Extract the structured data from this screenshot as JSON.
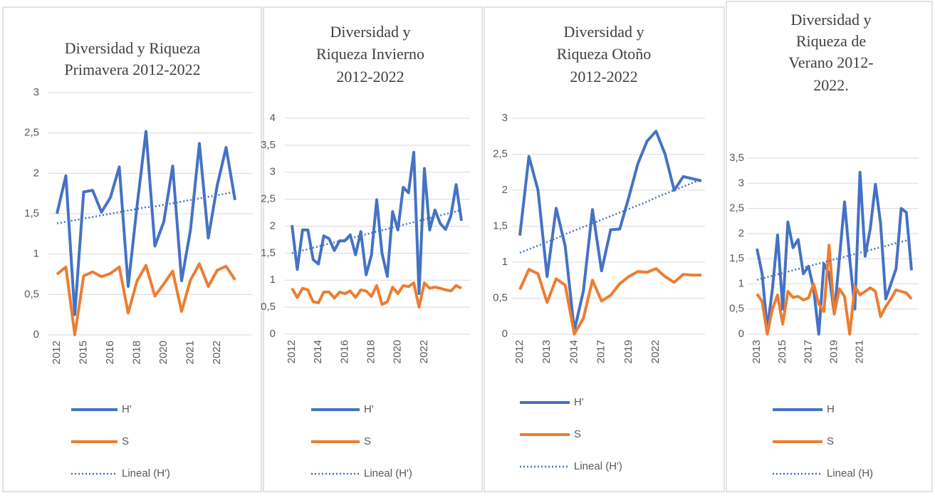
{
  "chart_data": [
    {
      "type": "line",
      "title": [
        "Diversidad y Riqueza",
        "Primavera 2012-2022"
      ],
      "categories": [
        "2012",
        null,
        null,
        "2015",
        null,
        null,
        "2016",
        null,
        null,
        "2018",
        null,
        null,
        "2020",
        null,
        null,
        "2021",
        null,
        null,
        "2022",
        null,
        null
      ],
      "ylim": [
        0,
        3
      ],
      "yticks": [
        0,
        {
          "value": 0.5,
          "label": "0,5"
        },
        1,
        {
          "value": 1.5,
          "label": "1,5"
        },
        2,
        {
          "value": 2.5,
          "label": "2,5"
        },
        3
      ],
      "grid": true,
      "series": [
        {
          "name": "H'",
          "color": "#4472c4",
          "values": [
            1.5,
            1.97,
            0.25,
            1.77,
            1.79,
            1.52,
            1.7,
            2.08,
            0.6,
            1.6,
            2.52,
            1.1,
            1.4,
            2.09,
            0.67,
            1.3,
            2.37,
            1.2,
            1.85,
            2.32,
            1.67
          ]
        },
        {
          "name": "S",
          "color": "#ed7d31",
          "values": [
            0.75,
            0.84,
            0,
            0.73,
            0.78,
            0.72,
            0.76,
            0.84,
            0.27,
            0.67,
            0.86,
            0.48,
            0.63,
            0.79,
            0.29,
            0.68,
            0.88,
            0.6,
            0.8,
            0.85,
            0.68
          ]
        },
        {
          "name": "Lineal (H')",
          "color": "#4472c4",
          "style": "dotted",
          "values": [
            1.38,
            1.4,
            1.42,
            1.44,
            1.46,
            1.48,
            1.5,
            1.52,
            1.54,
            1.56,
            1.58,
            1.59,
            1.61,
            1.63,
            1.65,
            1.67,
            1.69,
            1.71,
            1.73,
            1.75,
            1.77
          ]
        }
      ]
    },
    {
      "type": "line",
      "title": [
        "Diversidad y",
        "Riqueza Invierno",
        "2012-2022"
      ],
      "categories": [
        "2012",
        null,
        null,
        null,
        null,
        "2014",
        null,
        null,
        null,
        null,
        "2016",
        null,
        null,
        null,
        null,
        "2018",
        null,
        null,
        null,
        null,
        "2020",
        null,
        null,
        null,
        null,
        "2022",
        null,
        null,
        null,
        null,
        null,
        null,
        null
      ],
      "ylim": [
        0,
        4
      ],
      "yticks": [
        0,
        {
          "value": 0.5,
          "label": "0,5"
        },
        1,
        {
          "value": 1.5,
          "label": "1,5"
        },
        2,
        {
          "value": 2.5,
          "label": "2,5"
        },
        3,
        {
          "value": 3.5,
          "label": "3,5"
        },
        4
      ],
      "grid": true,
      "series": [
        {
          "name": "H'",
          "color": "#4472c4",
          "values": [
            2.02,
            1.2,
            1.93,
            1.93,
            1.38,
            1.3,
            1.82,
            1.77,
            1.55,
            1.73,
            1.73,
            1.84,
            1.47,
            1.9,
            1.1,
            1.46,
            2.49,
            1.5,
            1.07,
            2.27,
            1.93,
            2.72,
            2.62,
            3.37,
            0.75,
            3.07,
            1.93,
            2.3,
            2.05,
            1.94,
            2.19,
            2.77,
            2.1
          ]
        },
        {
          "name": "S",
          "color": "#ed7d31",
          "values": [
            0.85,
            0.68,
            0.85,
            0.82,
            0.6,
            0.58,
            0.78,
            0.78,
            0.67,
            0.78,
            0.75,
            0.8,
            0.68,
            0.82,
            0.8,
            0.7,
            0.9,
            0.55,
            0.6,
            0.87,
            0.75,
            0.9,
            0.88,
            0.95,
            0.5,
            0.95,
            0.85,
            0.87,
            0.85,
            0.82,
            0.8,
            0.9,
            0.85
          ]
        },
        {
          "name": "Lineal (H')",
          "color": "#4472c4",
          "style": "dotted",
          "values": [
            1.5,
            1.525,
            1.55,
            1.575,
            1.6,
            1.625,
            1.65,
            1.675,
            1.7,
            1.725,
            1.75,
            1.775,
            1.8,
            1.825,
            1.85,
            1.875,
            1.9,
            1.925,
            1.95,
            1.975,
            2.0,
            2.025,
            2.05,
            2.075,
            2.1,
            2.125,
            2.15,
            2.175,
            2.2,
            2.225,
            2.25,
            2.275,
            2.3
          ]
        }
      ]
    },
    {
      "type": "line",
      "title": [
        "Diversidad y",
        "Riqueza Otoño",
        "2012-2022"
      ],
      "categories": [
        "2012",
        null,
        null,
        "2013",
        null,
        null,
        "2014",
        null,
        null,
        "2017",
        null,
        null,
        "2019",
        null,
        null,
        "2022",
        null,
        null,
        null,
        null,
        null
      ],
      "ylim": [
        0,
        3
      ],
      "yticks": [
        0,
        {
          "value": 0.5,
          "label": "0,5"
        },
        1,
        {
          "value": 1.5,
          "label": "1,5"
        },
        2,
        {
          "value": 2.5,
          "label": "2,5"
        },
        3
      ],
      "grid": true,
      "series": [
        {
          "name": "H'",
          "color": "#4472c4",
          "values": [
            1.37,
            2.47,
            2.0,
            0.8,
            1.75,
            1.22,
            0.05,
            0.6,
            1.73,
            0.88,
            1.45,
            1.46,
            1.9,
            2.37,
            2.68,
            2.82,
            2.5,
            2.0,
            2.19,
            2.16,
            2.13
          ]
        },
        {
          "name": "S",
          "color": "#ed7d31",
          "values": [
            0.62,
            0.9,
            0.84,
            0.44,
            0.77,
            0.68,
            0,
            0.22,
            0.75,
            0.46,
            0.54,
            0.7,
            0.8,
            0.87,
            0.86,
            0.91,
            0.8,
            0.72,
            0.83,
            0.82,
            0.82
          ]
        },
        {
          "name": "Lineal (H')",
          "color": "#4472c4",
          "style": "dotted",
          "values": [
            1.13,
            1.18,
            1.23,
            1.28,
            1.33,
            1.39,
            1.44,
            1.49,
            1.54,
            1.59,
            1.64,
            1.69,
            1.74,
            1.79,
            1.84,
            1.9,
            1.95,
            2.0,
            2.05,
            2.1,
            2.15
          ]
        }
      ]
    },
    {
      "type": "line",
      "title": [
        "Diversidad y",
        "Riqueza de",
        "Verano 2012-",
        "2022."
      ],
      "categories": [
        "2013",
        null,
        null,
        null,
        null,
        "2015",
        null,
        null,
        null,
        null,
        "2017",
        null,
        null,
        null,
        null,
        "2019",
        null,
        null,
        null,
        null,
        "2021",
        null,
        null,
        null,
        null,
        null,
        null,
        null,
        null,
        null,
        null
      ],
      "ylim": [
        0,
        3.5
      ],
      "yticks": [
        0,
        {
          "value": 0.5,
          "label": "0,5"
        },
        1,
        {
          "value": 1.5,
          "label": "1,5"
        },
        2,
        {
          "value": 2.5,
          "label": "2,5"
        },
        3,
        {
          "value": 3.5,
          "label": "3,5"
        }
      ],
      "grid": true,
      "series": [
        {
          "name": "H",
          "color": "#4472c4",
          "values": [
            1.7,
            1.2,
            0.1,
            0.9,
            1.97,
            0.5,
            2.23,
            1.72,
            1.88,
            1.2,
            1.35,
            0.9,
            0,
            1.4,
            1.2,
            0.4,
            1.5,
            2.63,
            1.5,
            0.5,
            3.22,
            1.55,
            2.1,
            2.98,
            2.2,
            0.7,
            1.0,
            1.3,
            2.5,
            2.42,
            1.27
          ]
        },
        {
          "name": "S",
          "color": "#ed7d31",
          "values": [
            0.8,
            0.65,
            0,
            0.5,
            0.78,
            0.2,
            0.85,
            0.73,
            0.75,
            0.68,
            0.72,
            1.0,
            0.6,
            0.45,
            1.77,
            0.4,
            0.9,
            0.75,
            0,
            0.95,
            0.78,
            0.85,
            0.92,
            0.85,
            0.35,
            0.55,
            0.7,
            0.88,
            0.85,
            0.82,
            0.7
          ]
        },
        {
          "name": "Lineal (H)",
          "color": "#4472c4",
          "style": "dotted",
          "values": [
            1.08,
            1.107,
            1.134,
            1.161,
            1.188,
            1.215,
            1.242,
            1.269,
            1.296,
            1.323,
            1.35,
            1.377,
            1.404,
            1.431,
            1.458,
            1.485,
            1.512,
            1.539,
            1.566,
            1.593,
            1.62,
            1.647,
            1.674,
            1.701,
            1.728,
            1.755,
            1.782,
            1.809,
            1.836,
            1.863,
            1.89
          ]
        }
      ]
    }
  ]
}
